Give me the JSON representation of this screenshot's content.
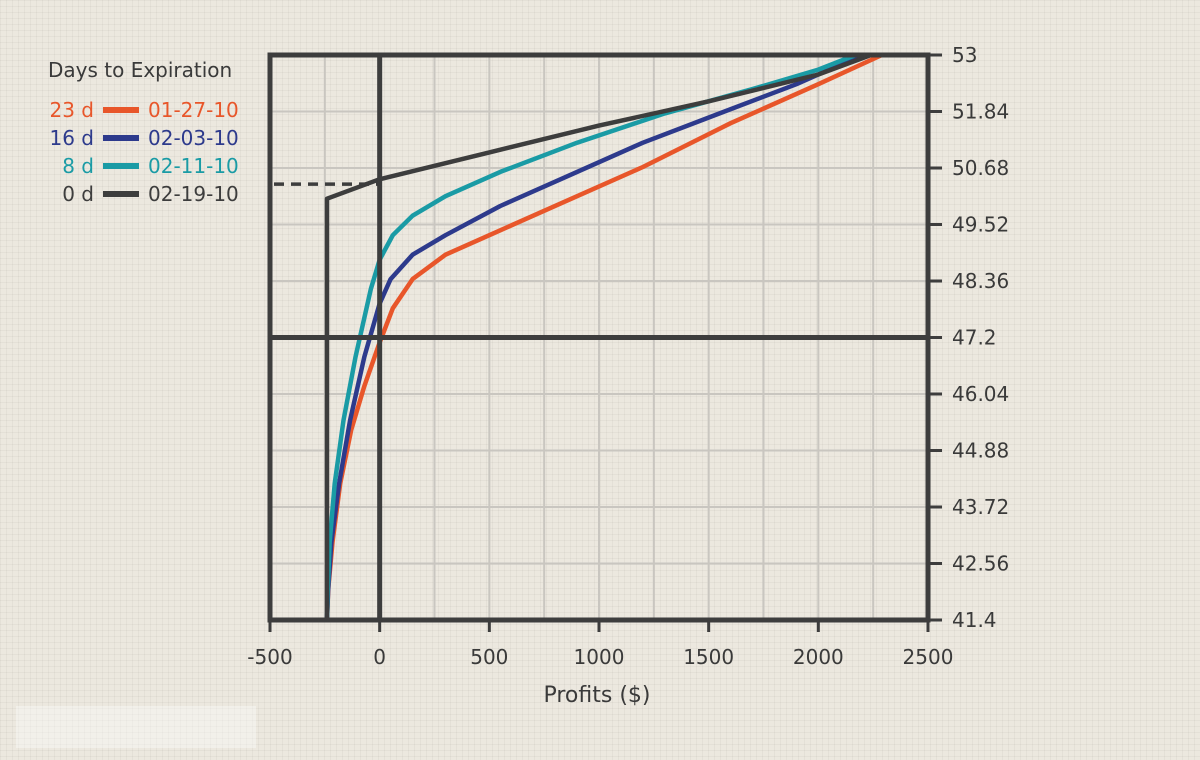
{
  "chart_data": {
    "type": "line",
    "xlabel": "Profits ($)",
    "ylabel": "",
    "xlim": [
      -500,
      2500
    ],
    "ylim": [
      41.4,
      53
    ],
    "x_ticks": [
      -500,
      0,
      500,
      1000,
      1500,
      2000,
      2500
    ],
    "y_ticks": [
      41.4,
      42.56,
      43.72,
      44.88,
      46.04,
      47.2,
      48.36,
      49.52,
      50.68,
      51.84,
      53
    ],
    "y_axis_side": "right",
    "grid": true,
    "reference_lines": {
      "x": 0,
      "y": 47.2
    },
    "breakeven_marker": {
      "y": 50.35,
      "x_from": -500,
      "x_to": 0,
      "style": "dashed"
    },
    "legend": {
      "title": "Days to Expiration",
      "placement": "top-left"
    },
    "series": [
      {
        "name": "01-27-10",
        "days": "23 d",
        "color": "#e8562a",
        "x": [
          -240,
          -235,
          -215,
          -180,
          -130,
          -70,
          0,
          60,
          150,
          300,
          550,
          850,
          1200,
          1600,
          2000,
          2290
        ],
        "y": [
          41.4,
          42.0,
          43.0,
          44.2,
          45.3,
          46.2,
          47.1,
          47.8,
          48.4,
          48.9,
          49.4,
          50.0,
          50.7,
          51.6,
          52.4,
          53.0
        ]
      },
      {
        "name": "02-03-10",
        "days": "16 d",
        "color": "#2d3a8c",
        "x": [
          -240,
          -235,
          -220,
          -185,
          -135,
          -70,
          0,
          50,
          150,
          300,
          550,
          850,
          1200,
          1550,
          1900,
          2200
        ],
        "y": [
          41.4,
          42.0,
          43.0,
          44.2,
          45.5,
          46.8,
          47.9,
          48.4,
          48.9,
          49.3,
          49.9,
          50.5,
          51.2,
          51.8,
          52.4,
          53.0
        ]
      },
      {
        "name": "02-11-10",
        "days": "8 d",
        "color": "#1a9ba5",
        "x": [
          -240,
          -237,
          -228,
          -205,
          -165,
          -110,
          -40,
          0,
          60,
          150,
          300,
          550,
          900,
          1300,
          1700,
          2000,
          2170
        ],
        "y": [
          41.4,
          42.0,
          43.0,
          44.2,
          45.5,
          46.8,
          48.2,
          48.8,
          49.3,
          49.7,
          50.1,
          50.6,
          51.2,
          51.8,
          52.3,
          52.7,
          53.0
        ]
      },
      {
        "name": "02-19-10",
        "days": "0 d",
        "color": "#3d3d3d",
        "x": [
          -240,
          -240,
          0,
          500,
          1000,
          1500,
          2000,
          2240
        ],
        "y": [
          41.4,
          50.05,
          50.45,
          51.0,
          51.55,
          52.05,
          52.6,
          53.0
        ]
      }
    ]
  }
}
